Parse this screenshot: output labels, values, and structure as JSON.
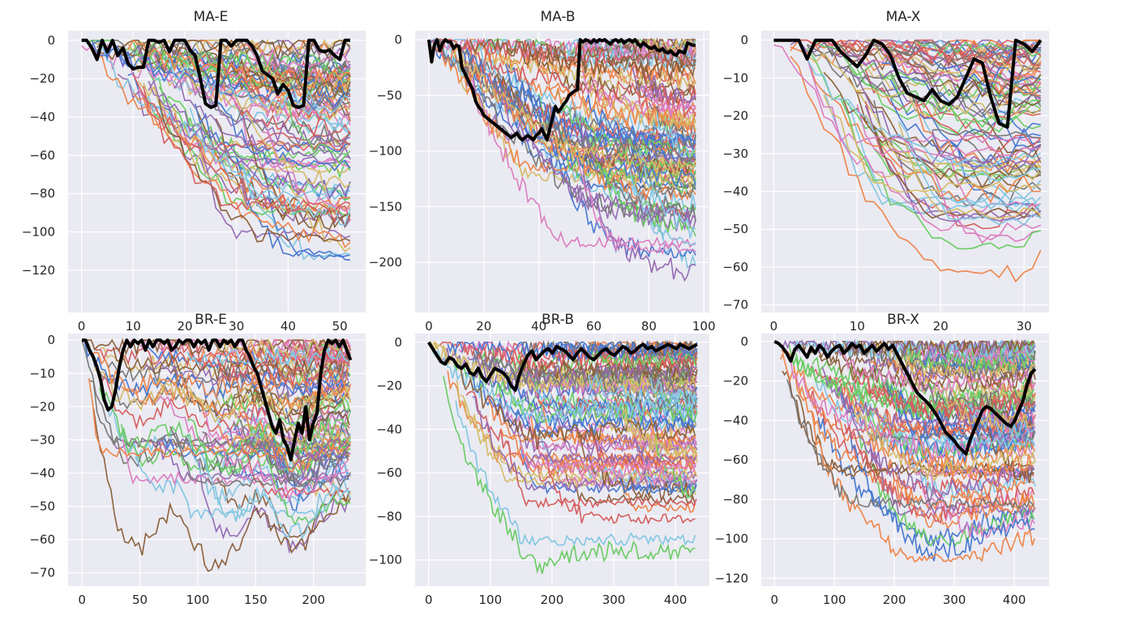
{
  "chart_data": [
    {
      "type": "line",
      "title": "MA-E",
      "xlim": [
        -2.6,
        55
      ],
      "ylim": [
        -142,
        5
      ],
      "xticks": [
        0,
        10,
        20,
        30,
        40,
        50
      ],
      "xtick_labels": [
        "0",
        "10",
        "20",
        "30",
        "40",
        "50"
      ],
      "yticks": [
        0,
        -20,
        -40,
        -60,
        -80,
        -100,
        -120
      ],
      "ytick_labels": [
        "0",
        "−20",
        "−40",
        "−60",
        "−80",
        "−100",
        "−120"
      ],
      "grid": true,
      "n": 53,
      "bundle_floor": [
        0,
        -2.5,
        -8,
        -15,
        -22,
        -28,
        -34,
        -39,
        -43,
        -47,
        -50,
        -53,
        -56,
        -59,
        -62,
        -65,
        -68,
        -71,
        -74,
        -77,
        -80,
        -83,
        -86,
        -89,
        -92,
        -95,
        -98,
        -101,
        -104,
        -107,
        -110,
        -113,
        -115,
        -117,
        -119,
        -120,
        -121,
        -122,
        -123,
        -124,
        -125,
        -126,
        -127,
        -128,
        -129,
        -130,
        -131,
        -131,
        -132,
        -132,
        -133,
        -133,
        -133
      ],
      "highlight": [
        0,
        0,
        -4,
        -10,
        0,
        -6,
        0,
        -8,
        -4,
        -12,
        -15,
        -14,
        -14,
        0,
        0,
        -1,
        0,
        -6,
        0,
        0,
        0,
        -5,
        -8,
        -20,
        -33,
        -35,
        -34,
        0,
        0,
        -3,
        0,
        0,
        0,
        -3,
        -8,
        -16,
        -18,
        -20,
        -28,
        -23,
        -26,
        -34,
        -35,
        -34,
        0,
        0,
        -5,
        -6,
        -5,
        -8,
        -10,
        0,
        0
      ]
    },
    {
      "type": "line",
      "title": "MA-B",
      "xlim": [
        -5,
        102
      ],
      "ylim": [
        -245,
        8
      ],
      "xticks": [
        0,
        20,
        40,
        60,
        80,
        100
      ],
      "xtick_labels": [
        "0",
        "20",
        "40",
        "60",
        "80",
        "100"
      ],
      "yticks": [
        0,
        -50,
        -100,
        -150,
        -200
      ],
      "ytick_labels": [
        "0",
        "−50",
        "−100",
        "−150",
        "−200"
      ],
      "grid": true,
      "n": 98,
      "bundle_floor": [
        0,
        -3,
        -7,
        -12,
        -17,
        -22,
        -27,
        -32,
        -36,
        -40,
        -44,
        -48,
        -52,
        -56,
        -60,
        -64,
        -68,
        -72,
        -76,
        -80,
        -84,
        -88,
        -92,
        -96,
        -100,
        -104,
        -108,
        -112,
        -116,
        -120,
        -124,
        -128,
        -132,
        -136,
        -140,
        -144,
        -148,
        -152,
        -156,
        -160,
        -163,
        -166,
        -169,
        -172,
        -175,
        -178,
        -181,
        -184,
        -186,
        -188,
        -190,
        -192,
        -194,
        -196,
        -198,
        -200,
        -202,
        -204,
        -206,
        -208,
        -209,
        -210,
        -211,
        -212,
        -213,
        -214,
        -215,
        -216,
        -217,
        -218,
        -219,
        -220,
        -220,
        -221,
        -221,
        -222,
        -222,
        -223,
        -223,
        -224,
        -224,
        -225,
        -225,
        -226,
        -226,
        -227,
        -227,
        -228,
        -228,
        -229,
        -229,
        -230,
        -230,
        -231,
        -231,
        -232,
        -232,
        -232
      ],
      "highlight": [
        0,
        -20,
        -5,
        0,
        -10,
        -3,
        0,
        -2,
        -2,
        -8,
        -5,
        -6,
        -25,
        -30,
        -35,
        -40,
        -45,
        -55,
        -60,
        -63,
        -68,
        -70,
        -72,
        -74,
        -76,
        -78,
        -80,
        -82,
        -84,
        -86,
        -88,
        -86,
        -84,
        -88,
        -90,
        -88,
        -86,
        -88,
        -90,
        -86,
        -84,
        -80,
        -85,
        -90,
        -80,
        -70,
        -60,
        -65,
        -62,
        -58,
        -55,
        -50,
        -48,
        -46,
        -45,
        0,
        -2,
        0,
        -1,
        -3,
        0,
        -2,
        0,
        -1,
        0,
        -2,
        -4,
        -1,
        0,
        -2,
        0,
        -3,
        -1,
        0,
        -2,
        0,
        -4,
        -6,
        -3,
        -5,
        -7,
        -8,
        -6,
        -9,
        -10,
        -8,
        -11,
        -12,
        -10,
        -13,
        -14,
        -10,
        -11,
        -12,
        -3,
        -4,
        -5,
        -5
      ]
    },
    {
      "type": "line",
      "title": "MA-X",
      "xlim": [
        -1.5,
        33
      ],
      "ylim": [
        -72,
        2.5
      ],
      "xticks": [
        0,
        10,
        20,
        30
      ],
      "xtick_labels": [
        "0",
        "10",
        "20",
        "30"
      ],
      "yticks": [
        0,
        -10,
        -20,
        -30,
        -40,
        -50,
        -60,
        -70
      ],
      "ytick_labels": [
        "0",
        "−10",
        "−20",
        "−30",
        "−40",
        "−50",
        "−60",
        "−70"
      ],
      "grid": true,
      "n": 33,
      "bundle_floor": [
        0,
        -3,
        -7,
        -11,
        -16,
        -21,
        -26,
        -30,
        -34,
        -38,
        -42,
        -45,
        -48,
        -51,
        -54,
        -56,
        -58,
        -60,
        -62,
        -64,
        -66,
        -67,
        -68,
        -69,
        -69,
        -69,
        -68,
        -68,
        -67,
        -66,
        -65,
        -64,
        -63
      ],
      "highlight": [
        0,
        0,
        0,
        0,
        -5,
        0,
        0,
        0,
        -3,
        -5,
        -7,
        -4,
        0,
        -1,
        -4,
        -10,
        -14,
        -15,
        -16,
        -13,
        -16,
        -17,
        -15,
        -10,
        -5,
        -6,
        -15,
        -22,
        -23,
        0,
        -1,
        -3,
        0
      ]
    },
    {
      "type": "line",
      "title": "BR-E",
      "xlim": [
        -12,
        245
      ],
      "ylim": [
        -74,
        2
      ],
      "xticks": [
        0,
        50,
        100,
        150,
        200
      ],
      "xtick_labels": [
        "0",
        "50",
        "100",
        "150",
        "200"
      ],
      "yticks": [
        0,
        -10,
        -20,
        -30,
        -40,
        -50,
        -60,
        -70
      ],
      "ytick_labels": [
        "0",
        "−10",
        "−20",
        "−30",
        "−40",
        "−50",
        "−60",
        "−70"
      ],
      "grid": true,
      "n": 233,
      "bundle_floor": [
        0,
        -12,
        -24,
        -34,
        -42,
        -48,
        -53,
        -58,
        -62,
        -66,
        -69,
        -70,
        -70,
        -70,
        -69,
        -68,
        -66,
        -64,
        -62,
        -60,
        -58,
        -56,
        -55,
        -55,
        -56,
        -58,
        -60,
        -62,
        -64,
        -66,
        -68,
        -70,
        -71,
        -72,
        -72,
        -71,
        -70,
        -68,
        -66,
        -64,
        -62,
        -60,
        -58,
        -56,
        -55,
        -55,
        -56,
        -58,
        -60,
        -62,
        -64,
        -65,
        -66,
        -66,
        -66,
        -65,
        -64,
        -62,
        -60,
        -58,
        -56,
        -55,
        -54,
        -53,
        -52,
        -52,
        -52,
        -52
      ],
      "highlight": [
        0,
        0,
        -3,
        -5,
        -8,
        -12,
        -18,
        -21,
        -20,
        -15,
        -8,
        -3,
        0,
        -2,
        0,
        -1,
        0,
        -3,
        0,
        -2,
        0,
        0,
        -1,
        0,
        -3,
        -2,
        0,
        -1,
        0,
        0,
        -2,
        0,
        -1,
        0,
        -3,
        0,
        0,
        -2,
        0,
        -1,
        0,
        -2,
        0,
        0,
        -3,
        -5,
        -8,
        -10,
        -14,
        -18,
        -22,
        -26,
        -28,
        -24,
        -30,
        -32,
        -36,
        -30,
        -25,
        -28,
        -20,
        -30,
        -25,
        -22,
        -10,
        -3,
        0,
        -1,
        0,
        -2,
        0,
        -3,
        -6
      ]
    },
    {
      "type": "line",
      "title": "BR-B",
      "xlim": [
        -22,
        455
      ],
      "ylim": [
        -112,
        4
      ],
      "xticks": [
        0,
        100,
        200,
        300,
        400
      ],
      "xtick_labels": [
        "0",
        "100",
        "200",
        "300",
        "400"
      ],
      "yticks": [
        0,
        -20,
        -40,
        -60,
        -80,
        -100
      ],
      "ytick_labels": [
        "0",
        "−20",
        "−40",
        "−60",
        "−80",
        "−100"
      ],
      "grid": true,
      "n": 436,
      "bundle_floor": [
        0,
        -12,
        -22,
        -30,
        -38,
        -45,
        -51,
        -56,
        -60,
        -64,
        -67,
        -70,
        -73,
        -76,
        -79,
        -82,
        -85,
        -88,
        -91,
        -94,
        -97,
        -100,
        -103,
        -106,
        -108,
        -108,
        -107,
        -106,
        -104,
        -103,
        -102,
        -101,
        -100,
        -100,
        -99,
        -99,
        -99,
        -99,
        -99,
        -99,
        -98,
        -98,
        -98,
        -98,
        -98,
        -98,
        -98,
        -98,
        -98,
        -98,
        -98,
        -98,
        -98,
        -98,
        -98,
        -98,
        -98,
        -98,
        -98,
        -98
      ],
      "highlight": [
        0,
        -3,
        -6,
        -9,
        -10,
        -7,
        -8,
        -11,
        -12,
        -10,
        -14,
        -15,
        -12,
        -16,
        -18,
        -15,
        -12,
        -13,
        -14,
        -16,
        -20,
        -22,
        -15,
        -10,
        -6,
        -4,
        -8,
        -6,
        -4,
        -3,
        -5,
        -2,
        -3,
        -4,
        -6,
        -8,
        -5,
        -3,
        -5,
        -7,
        -8,
        -6,
        -4,
        -3,
        -5,
        -6,
        -4,
        -2,
        -3,
        -5,
        -4,
        -2,
        -1,
        -3,
        -2,
        -4,
        -3,
        -2,
        -1,
        -2,
        -3,
        -1,
        -2,
        -3,
        -2,
        -1
      ]
    },
    {
      "type": "line",
      "title": "BR-X",
      "xlim": [
        -22,
        458
      ],
      "ylim": [
        -124,
        4
      ],
      "xticks": [
        0,
        100,
        200,
        300,
        400
      ],
      "xtick_labels": [
        "0",
        "100",
        "200",
        "300",
        "400"
      ],
      "yticks": [
        0,
        -20,
        -40,
        -60,
        -80,
        -100,
        -120
      ],
      "ytick_labels": [
        "0",
        "−20",
        "−40",
        "−60",
        "−80",
        "−100",
        "−120"
      ],
      "grid": true,
      "n": 436,
      "bundle_floor": [
        0,
        -15,
        -28,
        -38,
        -46,
        -53,
        -59,
        -64,
        -69,
        -73,
        -76,
        -79,
        -82,
        -84,
        -86,
        -88,
        -90,
        -92,
        -94,
        -96,
        -98,
        -100,
        -102,
        -104,
        -106,
        -108,
        -110,
        -112,
        -114,
        -116,
        -118,
        -118,
        -117,
        -116,
        -115,
        -114,
        -113,
        -112,
        -111,
        -110,
        -109,
        -108,
        -107,
        -106,
        -105,
        -104,
        -103,
        -102,
        -101,
        -100,
        -100,
        -100
      ],
      "highlight": [
        0,
        -1,
        -3,
        -6,
        -10,
        -4,
        -2,
        -5,
        -8,
        -3,
        -6,
        -2,
        -4,
        -8,
        -5,
        -3,
        -2,
        -6,
        -4,
        -1,
        -3,
        -2,
        -6,
        -4,
        -2,
        -5,
        -3,
        -1,
        -4,
        -2,
        -6,
        -10,
        -14,
        -18,
        -22,
        -26,
        -28,
        -30,
        -32,
        -35,
        -38,
        -42,
        -46,
        -48,
        -50,
        -53,
        -55,
        -57,
        -50,
        -45,
        -40,
        -35,
        -33,
        -34,
        -36,
        -38,
        -40,
        -42,
        -43,
        -40,
        -35,
        -30,
        -22,
        -16,
        -14
      ]
    }
  ]
}
